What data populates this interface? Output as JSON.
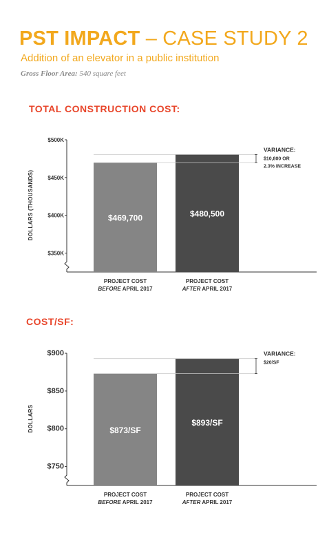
{
  "header": {
    "title_bold": "PST IMPACT",
    "title_rest": " – CASE STUDY 2",
    "subtitle": "Addition of an elevator in a public institution",
    "gfa_label": "Gross Floor Area:",
    "gfa_value": " 540 square feet"
  },
  "colors": {
    "accent": "#f2a81d",
    "heading": "#e8452a",
    "bar_before": "#858585",
    "bar_after": "#4a4a4a",
    "axis": "#333333",
    "bar_label": "#ffffff"
  },
  "chart_data": [
    {
      "type": "bar",
      "heading": "TOTAL CONSTRUCTION COST:",
      "ylabel": "DOLLARS (THOUSANDS)",
      "ylim": [
        325,
        500
      ],
      "yticks": [
        {
          "value": 500,
          "label": "$500K"
        },
        {
          "value": 450,
          "label": "$450K"
        },
        {
          "value": 400,
          "label": "$400K"
        },
        {
          "value": 350,
          "label": "$350K"
        }
      ],
      "categories": [
        {
          "line1": "PROJECT COST",
          "line2_em": "BEFORE",
          "line2_rest": " APRIL 2017"
        },
        {
          "line1": "PROJECT COST",
          "line2_em": "AFTER",
          "line2_rest": " APRIL 2017"
        }
      ],
      "values": [
        469.7,
        480.5
      ],
      "value_labels": [
        "$469,700",
        "$480,500"
      ],
      "variance": {
        "title": "VARIANCE:",
        "lines": [
          "$10,800 OR",
          "2.3% INCREASE"
        ]
      }
    },
    {
      "type": "bar",
      "heading": "COST/SF:",
      "ylabel": "DOLLARS",
      "ylim": [
        725,
        900
      ],
      "yticks": [
        {
          "value": 900,
          "label": "$900"
        },
        {
          "value": 850,
          "label": "$850"
        },
        {
          "value": 800,
          "label": "$800"
        },
        {
          "value": 750,
          "label": "$750"
        }
      ],
      "categories": [
        {
          "line1": "PROJECT COST",
          "line2_em": "BEFORE",
          "line2_rest": " APRIL 2017"
        },
        {
          "line1": "PROJECT COST",
          "line2_em": "AFTER",
          "line2_rest": " APRIL 2017"
        }
      ],
      "values": [
        873,
        893
      ],
      "value_labels": [
        "$873/SF",
        "$893/SF"
      ],
      "variance": {
        "title": "VARIANCE:",
        "lines": [
          "$20/SF"
        ]
      }
    }
  ]
}
